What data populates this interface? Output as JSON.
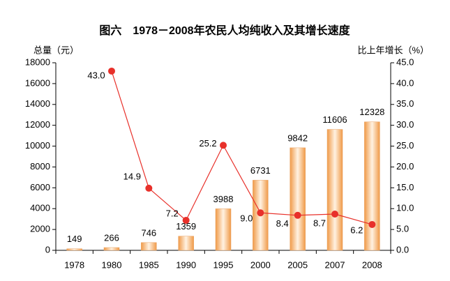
{
  "chart_data": {
    "type": "bar-line",
    "title": "图六　1978－2008年农民人均纯收入及其增长速度",
    "y_label": "总量（元）",
    "y2_label": "比上年增长（%）",
    "categories": [
      "1978",
      "1980",
      "1985",
      "1990",
      "1995",
      "2000",
      "2005",
      "2007",
      "2008"
    ],
    "series": [
      {
        "name": "总量",
        "type": "bar",
        "color": "#f0a050",
        "values": [
          149,
          266,
          746,
          1359,
          3988,
          6731,
          9842,
          11606,
          12328
        ]
      },
      {
        "name": "比上年增长",
        "type": "line",
        "axis": "y2",
        "color": "#e8302a",
        "values": [
          null,
          43.0,
          14.9,
          7.2,
          25.2,
          9.0,
          8.4,
          8.7,
          6.2
        ],
        "value_labels": [
          null,
          "43.0",
          "14.9",
          "7.2",
          "25.2",
          "9.0",
          "8.4",
          "8.7",
          "6.2"
        ]
      }
    ],
    "ylim": [
      0,
      18000
    ],
    "yticks": [
      0,
      2000,
      4000,
      6000,
      8000,
      10000,
      12000,
      14000,
      16000,
      18000
    ],
    "y2lim": [
      0,
      45
    ],
    "y2ticks": [
      {
        "value": 0,
        "label": "0.0"
      },
      {
        "value": 5,
        "label": "5.0"
      },
      {
        "value": 10,
        "label": "10.0"
      },
      {
        "value": 15,
        "label": "15.0"
      },
      {
        "value": 20,
        "label": "20.0"
      },
      {
        "value": 25,
        "label": "25.0"
      },
      {
        "value": 30,
        "label": "30.0"
      },
      {
        "value": 35,
        "label": "35.0"
      },
      {
        "value": 40,
        "label": "40.0"
      },
      {
        "value": 45,
        "label": "45.0"
      }
    ]
  }
}
